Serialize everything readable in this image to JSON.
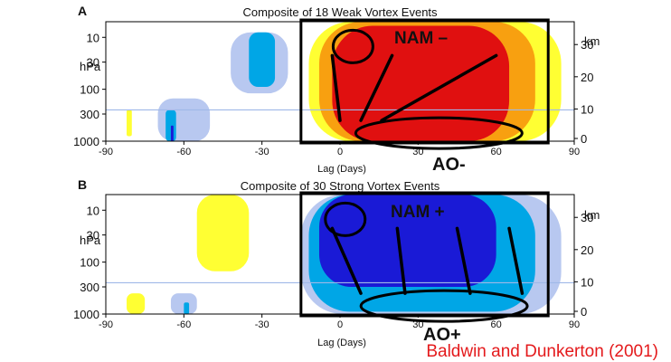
{
  "figure": {
    "citation": "Baldwin and Dunkerton (2001)",
    "citation_color": "#e41a1c",
    "colors": {
      "strong_neg": "#1a1ad6",
      "mid_neg": "#00a6e6",
      "light_neg": "#b8c8f0",
      "light_pos": "#ffff33",
      "mid_pos": "#f8a010",
      "strong_pos": "#e01010",
      "reference_line": "#9fb8e8"
    }
  },
  "chart_data": [
    {
      "panel_letter": "A",
      "type": "heatmap",
      "title": "Composite of 18 Weak Vortex Events",
      "xlabel": "Lag (Days)",
      "ylabel_left": "hPa",
      "ylabel_right": "km",
      "xlim": [
        -90,
        90
      ],
      "x_ticks": [
        "-90",
        "-60",
        "-30",
        "0",
        "30",
        "60",
        "90"
      ],
      "y_ticks_left": [
        "10",
        "30",
        "100",
        "300",
        "1000"
      ],
      "y_ticks_right": [
        "30",
        "20",
        "10",
        "0"
      ],
      "tropopause_hpa": 250,
      "highlight_box_lag": [
        -15,
        80
      ],
      "label_top": "NAM –",
      "label_bottom": "AO-",
      "sign": "positive",
      "blobs": [
        {
          "lag": [
            -12,
            85
          ],
          "p": [
            5,
            1000
          ],
          "level": 1
        },
        {
          "lag": [
            -8,
            75
          ],
          "p": [
            5,
            1000
          ],
          "level": 2
        },
        {
          "lag": [
            -3,
            65
          ],
          "p": [
            6,
            1000
          ],
          "level": 3
        },
        {
          "lag": [
            -82,
            -80
          ],
          "p": [
            250,
            800
          ],
          "level": 1
        },
        {
          "lag": [
            -42,
            -20
          ],
          "p": [
            8,
            120
          ],
          "level": -1
        },
        {
          "lag": [
            -35,
            -25
          ],
          "p": [
            8,
            90
          ],
          "level": -2
        },
        {
          "lag": [
            -70,
            -50
          ],
          "p": [
            150,
            1000
          ],
          "level": -1
        },
        {
          "lag": [
            -67,
            -63
          ],
          "p": [
            250,
            1000
          ],
          "level": -2
        },
        {
          "lag": [
            -65,
            -64
          ],
          "p": [
            500,
            1000
          ],
          "level": -3
        }
      ],
      "ellipses": [
        {
          "lag": 5,
          "p": 15
        },
        {
          "lag": 38,
          "p": 700
        }
      ],
      "rays": [
        [
          -3,
          20,
          60
        ],
        [
          0,
          8,
          16,
          38
        ]
      ]
    },
    {
      "panel_letter": "B",
      "type": "heatmap",
      "title": "Composite of 30 Strong Vortex Events",
      "xlabel": "Lag (Days)",
      "ylabel_left": "hPa",
      "ylabel_right": "km",
      "xlim": [
        -90,
        90
      ],
      "x_ticks": [
        "-90",
        "-60",
        "-30",
        "0",
        "30",
        "60",
        "90"
      ],
      "y_ticks_left": [
        "10",
        "30",
        "100",
        "300",
        "1000"
      ],
      "y_ticks_right": [
        "30",
        "20",
        "10",
        "0"
      ],
      "tropopause_hpa": 250,
      "highlight_box_lag": [
        -15,
        80
      ],
      "label_top": "NAM +",
      "label_bottom": "AO+",
      "sign": "negative",
      "blobs": [
        {
          "lag": [
            -15,
            85
          ],
          "p": [
            5,
            1000
          ],
          "level": -1
        },
        {
          "lag": [
            -12,
            75
          ],
          "p": [
            5,
            900
          ],
          "level": -2
        },
        {
          "lag": [
            -8,
            60
          ],
          "p": [
            5,
            300
          ],
          "level": -3
        },
        {
          "lag": [
            -55,
            -35
          ],
          "p": [
            5,
            150
          ],
          "level": 1
        },
        {
          "lag": [
            -82,
            -75
          ],
          "p": [
            400,
            1000
          ],
          "level": 1
        },
        {
          "lag": [
            -65,
            -55
          ],
          "p": [
            400,
            1000
          ],
          "level": -1
        },
        {
          "lag": [
            -60,
            -58
          ],
          "p": [
            600,
            1000
          ],
          "level": -2
        }
      ],
      "ellipses": [
        {
          "lag": 2,
          "p": 15
        },
        {
          "lag": 40,
          "p": 700
        }
      ],
      "rays": [
        [
          -3,
          22,
          45,
          65
        ],
        [
          8,
          25,
          50,
          70
        ]
      ]
    }
  ]
}
